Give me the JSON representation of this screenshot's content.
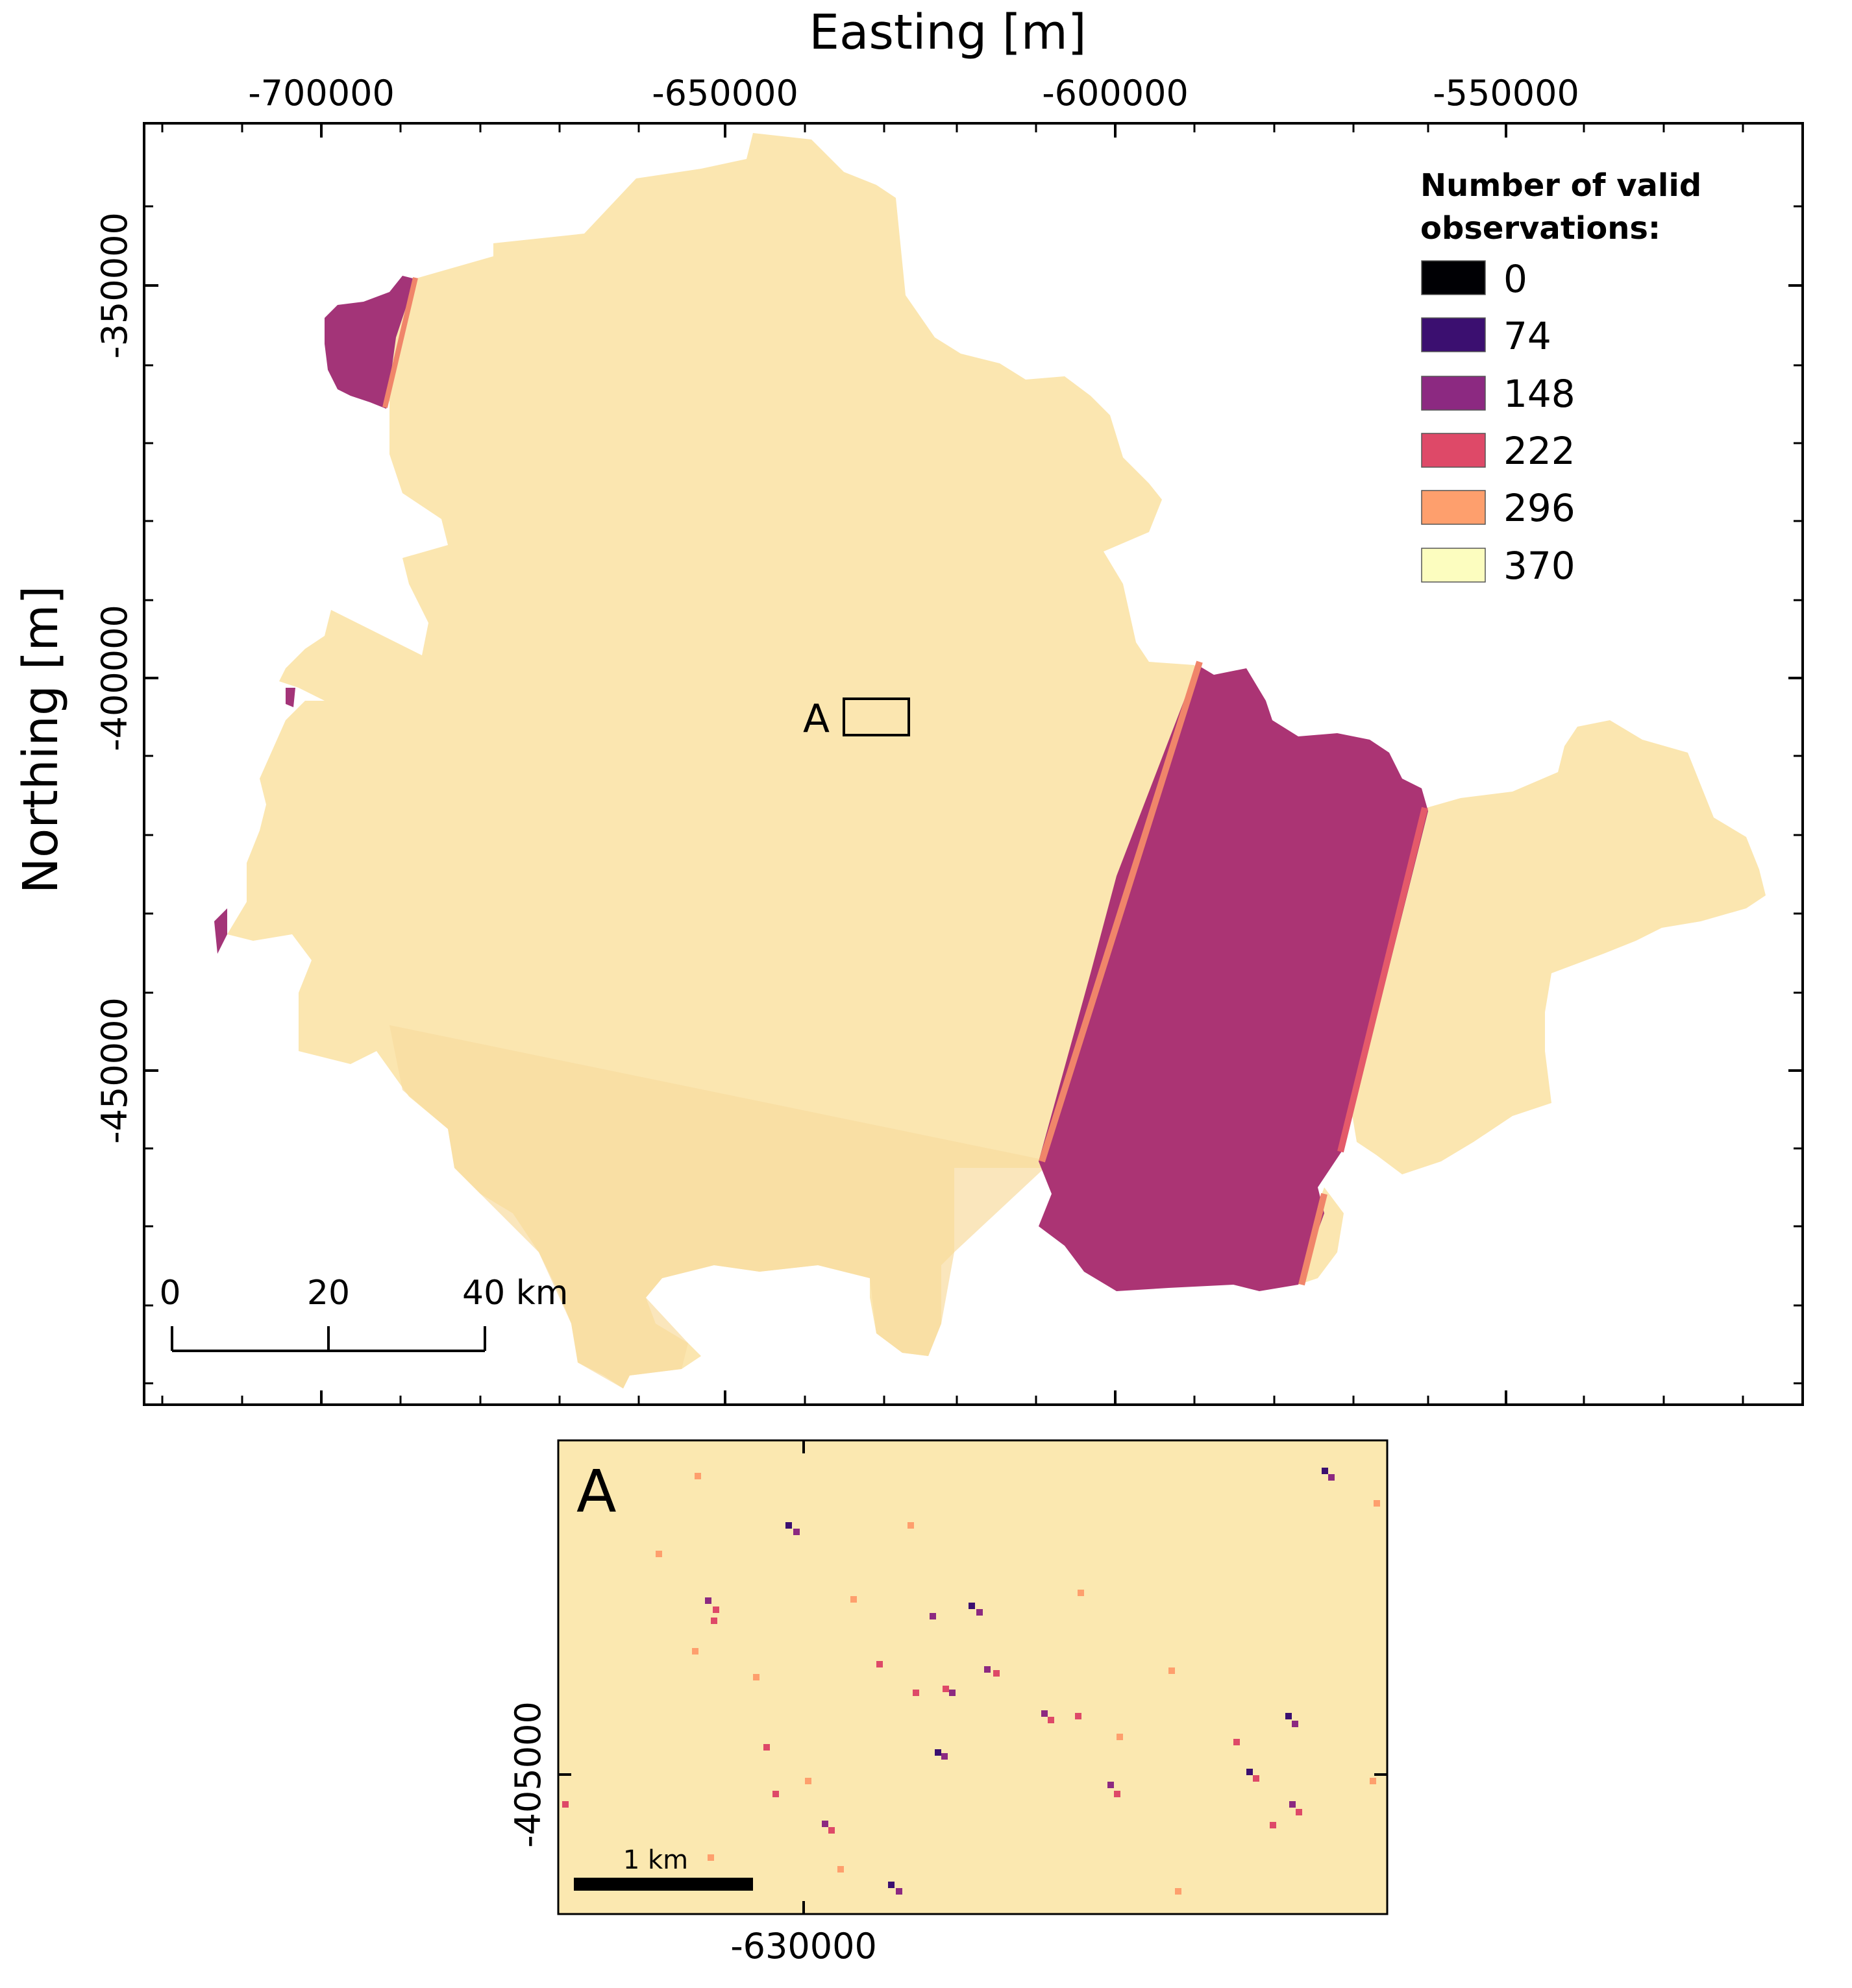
{
  "main_map": {
    "x_axis_title": "Easting [m]",
    "y_axis_title": "Northing [m]",
    "x_ticks": [
      "-700000",
      "-650000",
      "-600000",
      "-550000"
    ],
    "y_ticks": [
      "-350000",
      "-400000",
      "-450000"
    ],
    "inset_box_label": "A",
    "scalebar": {
      "labels": [
        "0",
        "20",
        "40 km"
      ]
    }
  },
  "legend": {
    "title_line1": "Number of valid",
    "title_line2": "observations:",
    "entries": [
      {
        "label": "0",
        "color": "#000004"
      },
      {
        "label": "74",
        "color": "#3b0f70"
      },
      {
        "label": "148",
        "color": "#8c2981"
      },
      {
        "label": "222",
        "color": "#de4968"
      },
      {
        "label": "296",
        "color": "#fe9f6d"
      },
      {
        "label": "370",
        "color": "#fcfdbf"
      }
    ]
  },
  "colors": {
    "region_fill": "#fbe6b0",
    "region_fill_south": "#f9dea2",
    "stripe_fill": "#ab3474",
    "stripe_edge": "#f0856a",
    "inset_fill": "#fbe8b0"
  },
  "inset": {
    "label": "A",
    "x_tick": "-630000",
    "y_tick": "-405000",
    "scalebar_label": "1 km"
  }
}
